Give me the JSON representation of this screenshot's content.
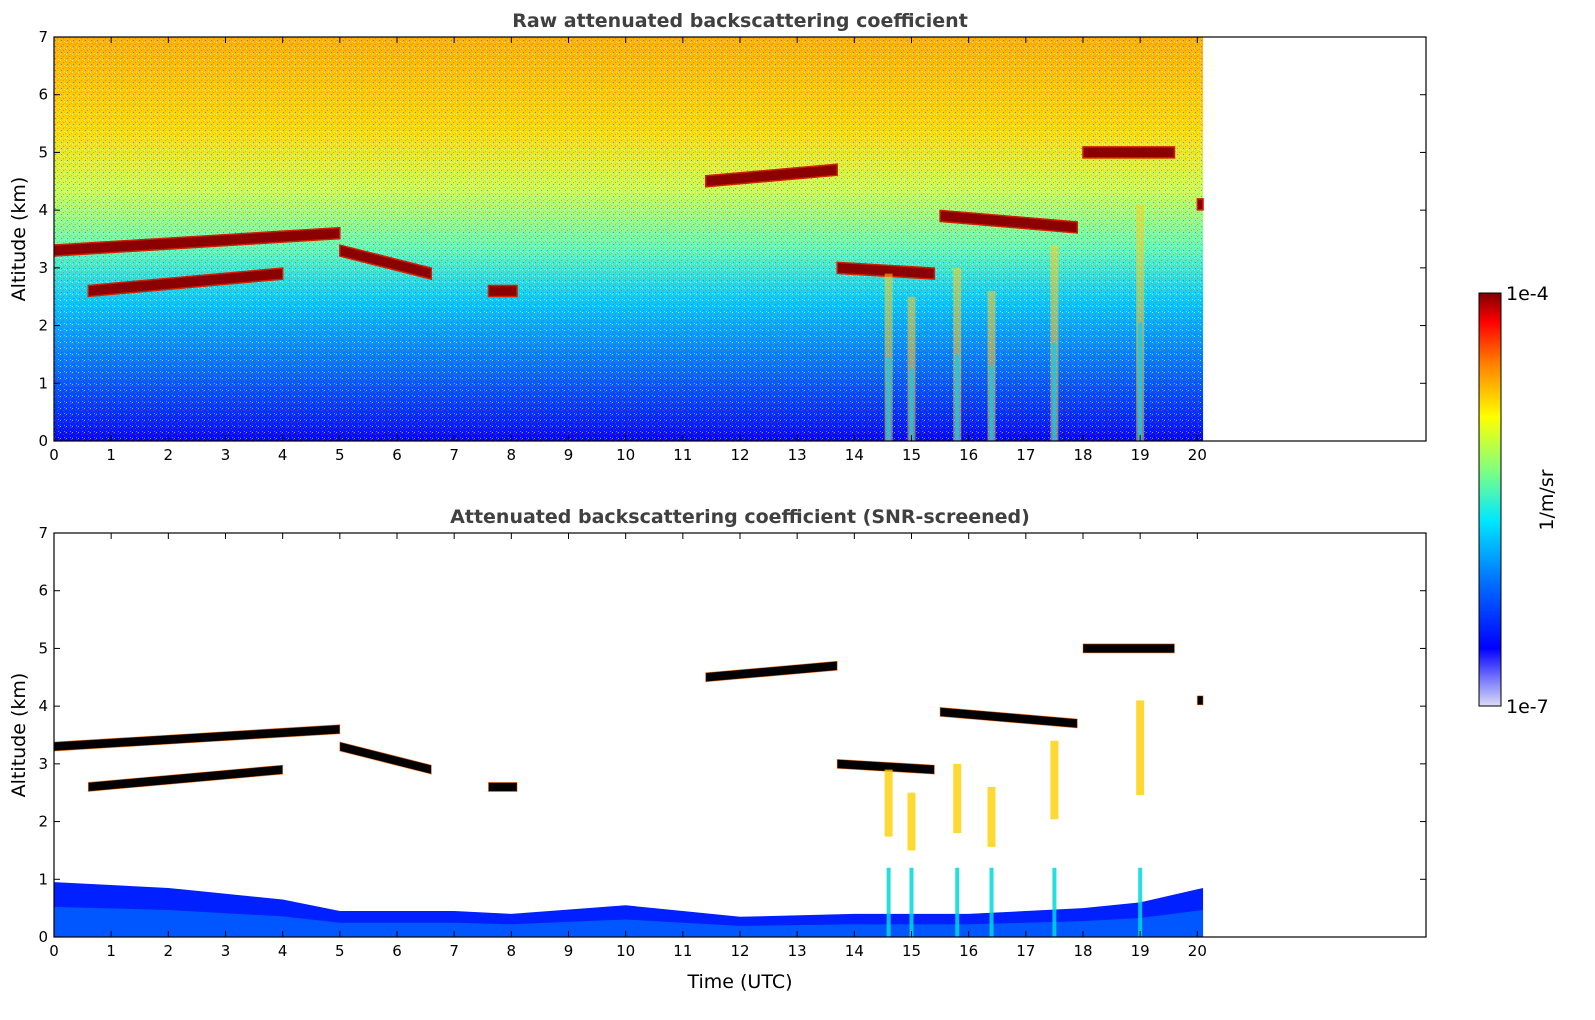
{
  "colors": {
    "jet": [
      "#00007f",
      "#0000ff",
      "#007fff",
      "#00ffff",
      "#7fff7f",
      "#ffff00",
      "#ff7f00",
      "#ff0000",
      "#7f0000"
    ],
    "colorbar_low": "#dcdcf5",
    "black_saturation": "#000000"
  },
  "chart_data": [
    {
      "type": "heatmap",
      "title": "Raw attenuated backscattering coefficient",
      "xlabel": "",
      "ylabel": "Altitude (km)",
      "xlim": [
        0,
        24
      ],
      "ylim": [
        0,
        7
      ],
      "xticks": [
        "0",
        "1",
        "2",
        "3",
        "4",
        "5",
        "6",
        "7",
        "8",
        "9",
        "10",
        "11",
        "12",
        "13",
        "14",
        "15",
        "16",
        "17",
        "18",
        "19",
        "20"
      ],
      "yticks": [
        "0",
        "1",
        "2",
        "3",
        "4",
        "5",
        "6",
        "7"
      ],
      "data_coverage_x": [
        0,
        20.1
      ],
      "colormap": "jet",
      "color_scale": "log",
      "value_range": [
        1e-07,
        0.0001
      ],
      "cloud_layers": [
        {
          "x_start": 0.0,
          "x_end": 5.0,
          "alt_start": 3.3,
          "alt_end": 3.6
        },
        {
          "x_start": 0.6,
          "x_end": 4.0,
          "alt_start": 2.6,
          "alt_end": 2.9
        },
        {
          "x_start": 5.0,
          "x_end": 6.6,
          "alt_start": 3.3,
          "alt_end": 2.9
        },
        {
          "x_start": 7.6,
          "x_end": 8.1,
          "alt_start": 2.6,
          "alt_end": 2.6
        },
        {
          "x_start": 11.4,
          "x_end": 13.7,
          "alt_start": 4.5,
          "alt_end": 4.7
        },
        {
          "x_start": 13.7,
          "x_end": 15.4,
          "alt_start": 3.0,
          "alt_end": 2.9
        },
        {
          "x_start": 15.5,
          "x_end": 17.9,
          "alt_start": 3.9,
          "alt_end": 3.7
        },
        {
          "x_start": 18.0,
          "x_end": 19.6,
          "alt_start": 5.0,
          "alt_end": 5.0
        },
        {
          "x_start": 20.0,
          "x_end": 20.1,
          "alt_start": 4.1,
          "alt_end": 4.1
        }
      ],
      "precip_fallstreaks": [
        {
          "x": 14.6,
          "alt_top": 2.9
        },
        {
          "x": 15.0,
          "alt_top": 2.5
        },
        {
          "x": 15.8,
          "alt_top": 3.0
        },
        {
          "x": 16.4,
          "alt_top": 2.6
        },
        {
          "x": 17.5,
          "alt_top": 3.4
        },
        {
          "x": 19.0,
          "alt_top": 4.1
        }
      ]
    },
    {
      "type": "heatmap",
      "title": "Attenuated backscattering coefficient (SNR-screened)",
      "xlabel": "Time (UTC)",
      "ylabel": "Altitude (km)",
      "xlim": [
        0,
        24
      ],
      "ylim": [
        0,
        7
      ],
      "xticks": [
        "0",
        "1",
        "2",
        "3",
        "4",
        "5",
        "6",
        "7",
        "8",
        "9",
        "10",
        "11",
        "12",
        "13",
        "14",
        "15",
        "16",
        "17",
        "18",
        "19",
        "20"
      ],
      "yticks": [
        "0",
        "1",
        "2",
        "3",
        "4",
        "5",
        "6",
        "7"
      ],
      "data_coverage_x": [
        0,
        20.1
      ],
      "colormap": "jet",
      "color_scale": "log",
      "value_range": [
        1e-07,
        0.0001
      ],
      "boundary_layer_top_km": [
        {
          "x": 0,
          "y": 0.95
        },
        {
          "x": 2,
          "y": 0.85
        },
        {
          "x": 4,
          "y": 0.65
        },
        {
          "x": 5,
          "y": 0.45
        },
        {
          "x": 7,
          "y": 0.45
        },
        {
          "x": 8,
          "y": 0.4
        },
        {
          "x": 10,
          "y": 0.55
        },
        {
          "x": 11,
          "y": 0.45
        },
        {
          "x": 12,
          "y": 0.35
        },
        {
          "x": 14,
          "y": 0.4
        },
        {
          "x": 16,
          "y": 0.4
        },
        {
          "x": 18,
          "y": 0.5
        },
        {
          "x": 19,
          "y": 0.6
        },
        {
          "x": 20.1,
          "y": 0.85
        }
      ]
    }
  ],
  "colorbar": {
    "label": "1/m/sr",
    "max_label": "1e-4",
    "min_label": "1e-7"
  }
}
